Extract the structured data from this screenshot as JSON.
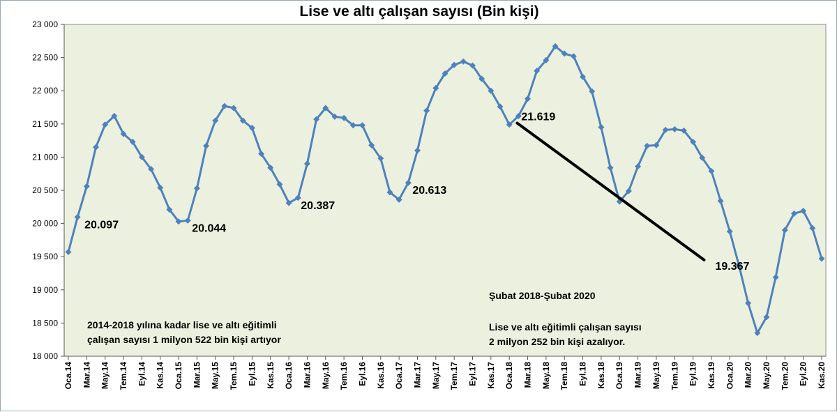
{
  "chart_data": {
    "type": "line",
    "title": "Lise ve altı çalışan sayısı (Bin kişi)",
    "xlabel": "",
    "ylabel": "",
    "ylim": [
      18000,
      23000
    ],
    "yticks": [
      "23 000",
      "22 500",
      "22 000",
      "21 500",
      "21 000",
      "20 500",
      "20 000",
      "19 500",
      "19 000",
      "18 500",
      "18 000"
    ],
    "ytick_values": [
      23000,
      22500,
      22000,
      21500,
      21000,
      20500,
      20000,
      19500,
      19000,
      18500,
      18000
    ],
    "grid": false,
    "legend": "none",
    "series_color": "#4f81bd",
    "plot_background": "#ebf1de",
    "x_tick_labels": [
      "Oca.14",
      "Mar.14",
      "May.14",
      "Tem.14",
      "Eyl.14",
      "Kas.14",
      "Oca.15",
      "Mar.15",
      "May.15",
      "Tem.15",
      "Eyl.15",
      "Kas.15",
      "Oca.16",
      "Mar.16",
      "May.16",
      "Tem.16",
      "Eyl.16",
      "Kas.16",
      "Oca.17",
      "Mar.17",
      "May.17",
      "Tem.17",
      "Eyl.17",
      "Kas.17",
      "Oca.18",
      "Mar.18",
      "May.18",
      "Tem.18",
      "Eyl.18",
      "Kas.18",
      "Oca.19",
      "Mar.19",
      "May.19",
      "Tem.19",
      "Eyl.19",
      "Kas.19",
      "Oca.20",
      "Mar.20",
      "May.20",
      "Tem.20",
      "Eyl.20",
      "Kas.20"
    ],
    "values": [
      19570,
      20097,
      20560,
      21150,
      21490,
      21620,
      21350,
      21230,
      21000,
      20820,
      20540,
      20210,
      20030,
      20044,
      20530,
      21170,
      21550,
      21770,
      21740,
      21550,
      21440,
      21050,
      20840,
      20590,
      20310,
      20387,
      20900,
      21570,
      21740,
      21610,
      21590,
      21480,
      21480,
      21180,
      20980,
      20470,
      20360,
      20613,
      21100,
      21700,
      22040,
      22260,
      22390,
      22440,
      22380,
      22180,
      22000,
      21760,
      21490,
      21619,
      21880,
      22300,
      22460,
      22670,
      22560,
      22520,
      22210,
      21990,
      21450,
      20840,
      20330,
      20490,
      20860,
      21170,
      21180,
      21410,
      21420,
      21400,
      21230,
      20990,
      20790,
      20340,
      19880,
      19367,
      18800,
      18350,
      18590,
      19190,
      19900,
      20150,
      20190,
      19930,
      19470
    ],
    "data_labels": [
      {
        "index": 1,
        "text": "20.097"
      },
      {
        "index": 13,
        "text": "20.044"
      },
      {
        "index": 25,
        "text": "20.387"
      },
      {
        "index": 37,
        "text": "20.613"
      },
      {
        "index": 49,
        "text": "21.619"
      },
      {
        "index": 73,
        "text": "19.367"
      }
    ],
    "trend_line": {
      "from_index": 49,
      "to_index": 73,
      "color": "#000000"
    },
    "annotations": {
      "left_line1": "2014-2018 yılına kadar lise ve altı eğitimli",
      "left_line2": "çalışan sayısı 1 milyon 522 bin kişi artıyor",
      "right_title": "Şubat 2018-Şubat 2020",
      "right_line1": "Lise ve altı eğitimli çalışan sayısı",
      "right_line2": "2 milyon 252 bin kişi azalıyor."
    }
  }
}
